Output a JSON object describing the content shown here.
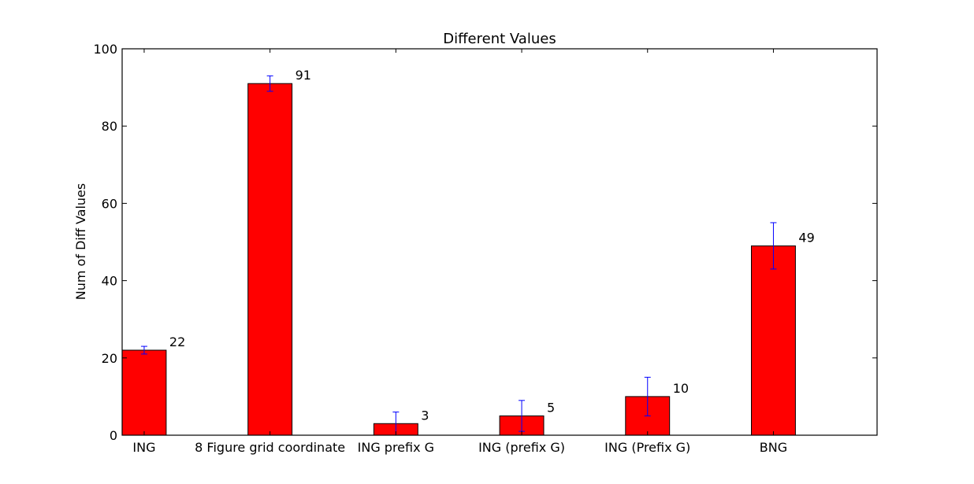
{
  "chart_data": {
    "type": "bar",
    "title": "Different Values",
    "xlabel": "",
    "ylabel": "Num of Diff Values",
    "ylim": [
      0,
      100
    ],
    "yticks": [
      0,
      20,
      40,
      60,
      80,
      100
    ],
    "categories": [
      "ING",
      "8 Figure grid coordinate",
      "ING prefix G",
      "ING (prefix G)",
      "ING (Prefix G)",
      "BNG"
    ],
    "values": [
      22,
      91,
      3,
      5,
      10,
      49
    ],
    "errors": [
      1,
      2,
      3,
      4,
      5,
      6
    ],
    "data_labels": [
      "22",
      "91",
      "3",
      "5",
      "10",
      "49"
    ],
    "bar_color": "#ff0000",
    "error_color": "#0000ff",
    "grid": false,
    "legend": "none"
  }
}
